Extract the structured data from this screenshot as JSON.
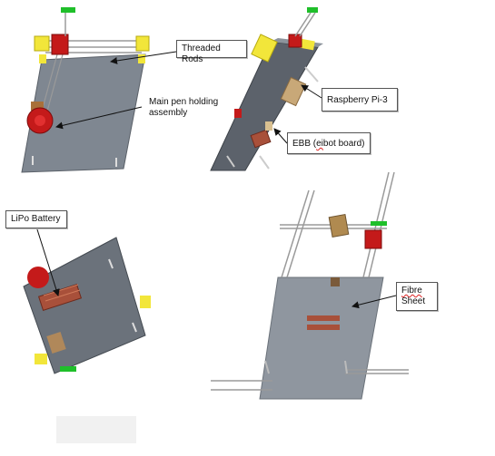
{
  "labels": {
    "threaded_rods": "Threaded Rods",
    "main_pen_line1": "Main pen holding",
    "main_pen_line2": "assembly",
    "raspberry_pi": "Raspberry Pi-3",
    "ebb_prefix": "EBB (",
    "ebb_squiggle": "ei",
    "ebb_suffix": "bot board)",
    "lipo_battery": "LiPo Battery",
    "fibre_line1": "Fibre",
    "fibre_line2": "Sheet"
  },
  "colors": {
    "plate": "#7f8791",
    "plate_light": "#9aa1aa",
    "plate_dark": "#4a5058",
    "yellow_bracket": "#f2e63a",
    "red_motor": "#c41a1a",
    "green_part": "#1fbf2a",
    "copper_board": "#a8503a",
    "raspberry_pi_board": "#c8a878",
    "rod": "#9a9a9a"
  },
  "icons": {
    "motor": "red-stepper-motor-icon",
    "pen_holder": "red-pen-holder-icon",
    "bracket": "yellow-bracket-icon"
  }
}
